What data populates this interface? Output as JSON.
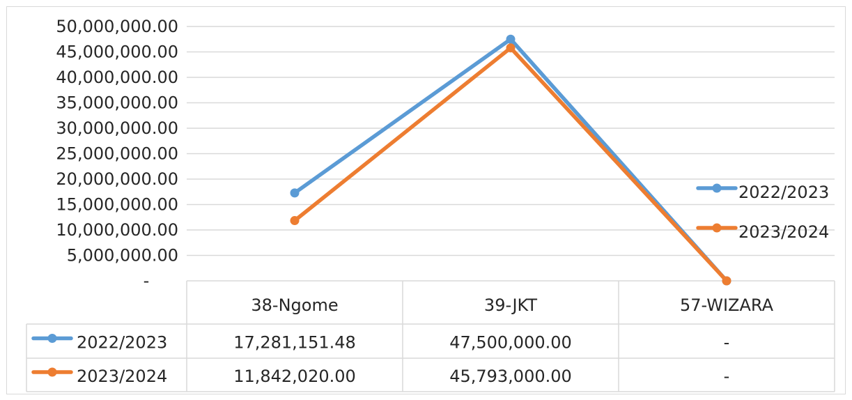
{
  "chart_data": {
    "type": "line",
    "title": "",
    "xlabel": "",
    "ylabel": "",
    "categories": [
      "38-Ngome",
      "39-JKT",
      "57-WIZARA"
    ],
    "series": [
      {
        "name": "2022/2023",
        "color": "#5b9bd5",
        "values": [
          17281151.48,
          47500000,
          0
        ],
        "table_labels": [
          "17,281,151.48",
          "47,500,000.00",
          "-"
        ]
      },
      {
        "name": "2023/2024",
        "color": "#ed7d31",
        "values": [
          11842020,
          45793000,
          0
        ],
        "table_labels": [
          "11,842,020.00",
          "45,793,000.00",
          "-"
        ]
      }
    ],
    "ylim": [
      0,
      50000000
    ],
    "y_ticks": [
      {
        "value": 0,
        "label": "-"
      },
      {
        "value": 5000000,
        "label": "5,000,000.00"
      },
      {
        "value": 10000000,
        "label": "10,000,000.00"
      },
      {
        "value": 15000000,
        "label": "15,000,000.00"
      },
      {
        "value": 20000000,
        "label": "20,000,000.00"
      },
      {
        "value": 25000000,
        "label": "25,000,000.00"
      },
      {
        "value": 30000000,
        "label": "30,000,000.00"
      },
      {
        "value": 35000000,
        "label": "35,000,000.00"
      },
      {
        "value": 40000000,
        "label": "40,000,000.00"
      },
      {
        "value": 45000000,
        "label": "45,000,000.00"
      },
      {
        "value": 50000000,
        "label": "50,000,000.00"
      }
    ],
    "grid": true,
    "legend_position": "right",
    "data_table": true,
    "gridline_color": "#d9d9d9"
  }
}
